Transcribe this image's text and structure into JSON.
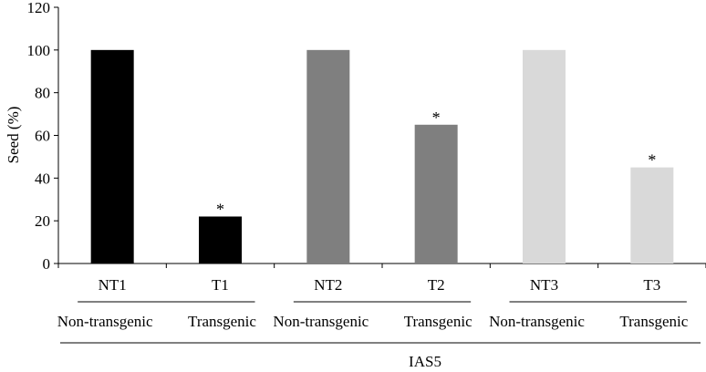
{
  "chart_data": {
    "type": "bar",
    "categories": [
      "NT1",
      "T1",
      "NT2",
      "T2",
      "NT3",
      "T3"
    ],
    "values": [
      100,
      22,
      100,
      65,
      100,
      45
    ],
    "bar_colors": [
      "#000000",
      "#000000",
      "#7f7f7f",
      "#7f7f7f",
      "#d9d9d9",
      "#d9d9d9"
    ],
    "significance": [
      "",
      "*",
      "",
      "*",
      "",
      "*"
    ],
    "ylabel": "Seed  (%)",
    "ylim": [
      0,
      120
    ],
    "yticks": [
      0,
      20,
      40,
      60,
      80,
      100,
      120
    ],
    "group_labels": [
      "Non-transgenic",
      "Transgenic",
      "Non-transgenic",
      "Transgenic",
      "Non-transgenic",
      "Transgenic"
    ],
    "bottom_label": "IAS5",
    "grid": false,
    "legend": "none"
  }
}
